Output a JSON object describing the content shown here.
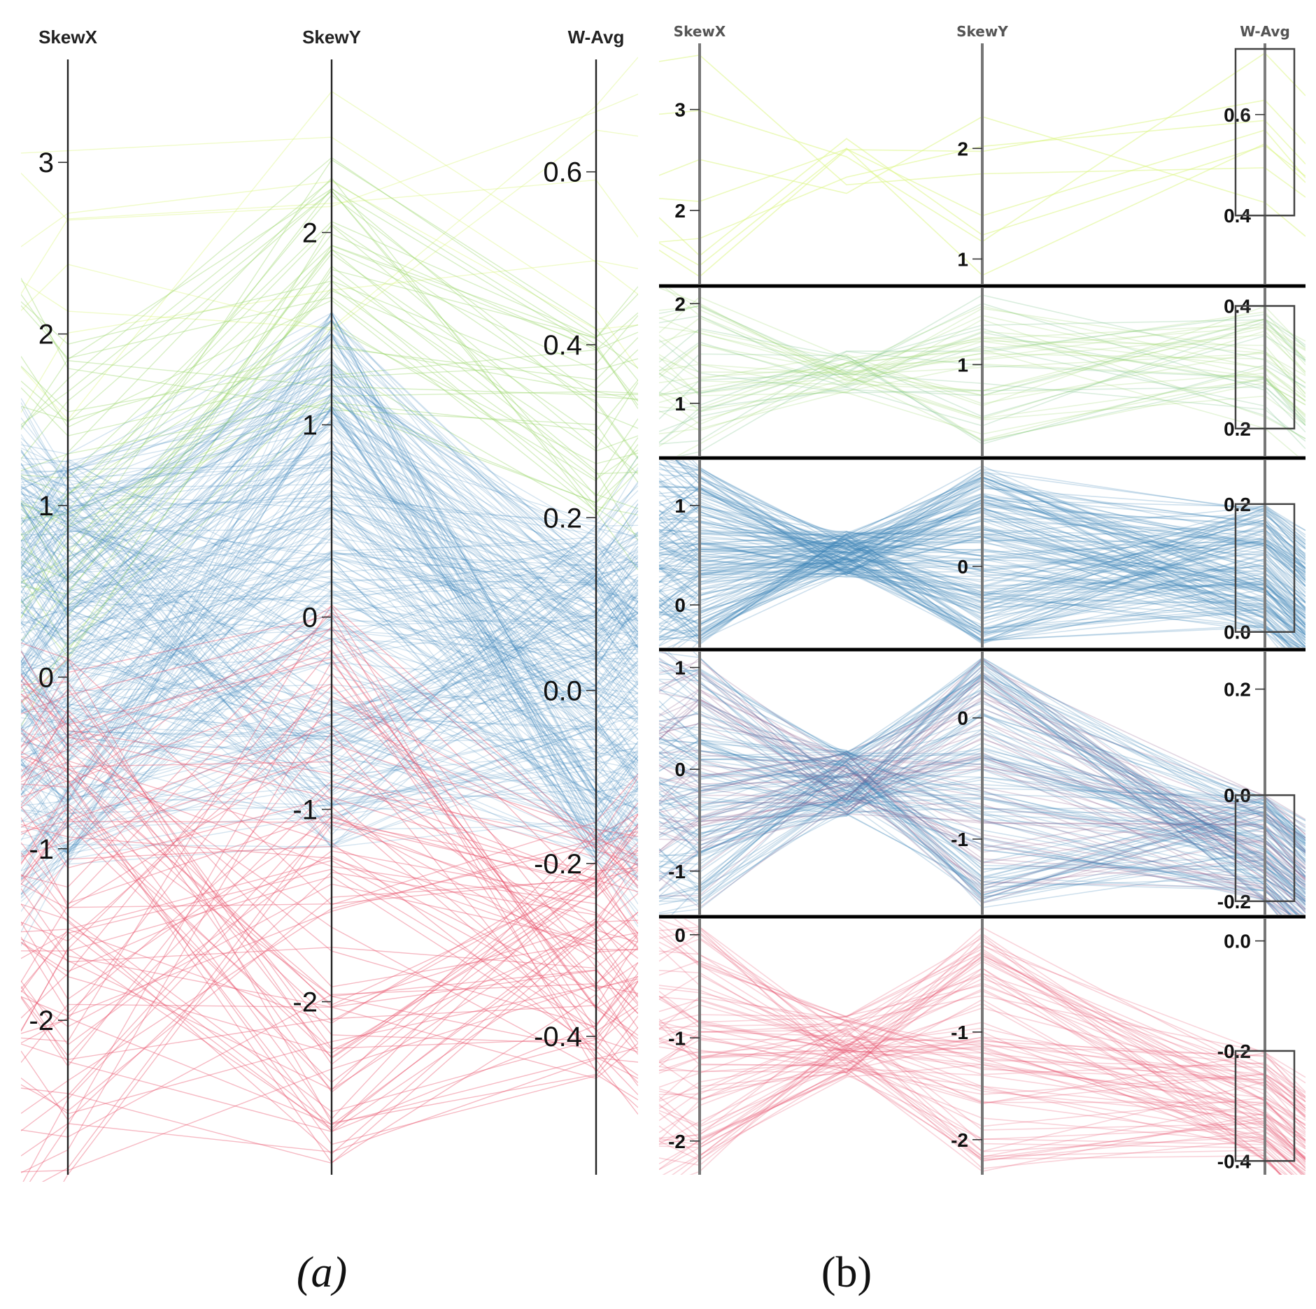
{
  "colors": {
    "green": "#9ad66b",
    "lightgreen": "#d9f57a",
    "midgreen": "#6aba7a",
    "blue": "#3c82b9",
    "red": "#e8506a",
    "purple": "#8a5a8a"
  },
  "captions": {
    "a": "(a)",
    "b": "(b)"
  },
  "chart_data": [
    {
      "type": "parallel-coordinates",
      "panel": "a",
      "axes": [
        {
          "name": "SkewX",
          "range": [
            -2.9,
            3.6
          ],
          "ticks": [
            3,
            2,
            1,
            0,
            -1,
            -2
          ],
          "tick_labels": [
            "3",
            "2",
            "1",
            "0",
            "-1",
            "-2"
          ]
        },
        {
          "name": "SkewY",
          "range": [
            -2.9,
            2.9
          ],
          "ticks": [
            2,
            1,
            0,
            -1,
            -2
          ],
          "tick_labels": [
            "2",
            "1",
            "0",
            "-1",
            "-2"
          ]
        },
        {
          "name": "W-Avg",
          "range": [
            -0.56,
            0.73
          ],
          "ticks": [
            0.6,
            0.4,
            0.2,
            0.0,
            -0.2,
            -0.4
          ],
          "tick_labels": [
            "0.6",
            "0.4",
            "0.2",
            "0.0",
            "-0.2",
            "-0.4"
          ]
        }
      ],
      "clusters": [
        {
          "name": "light-green",
          "count": 8,
          "skewx": [
            1.5,
            3.2
          ],
          "skewy": [
            0.8,
            2.9
          ],
          "wavg": [
            0.4,
            0.73
          ]
        },
        {
          "name": "green",
          "count": 40,
          "skewx": [
            0.1,
            2.0
          ],
          "skewy": [
            0.9,
            2.4
          ],
          "wavg": [
            0.2,
            0.42
          ]
        },
        {
          "name": "blue",
          "count": 300,
          "skewx": [
            -1.1,
            1.3
          ],
          "skewy": [
            -1.2,
            1.6
          ],
          "wavg": [
            -0.2,
            0.2
          ]
        },
        {
          "name": "red",
          "count": 90,
          "skewx": [
            -2.9,
            0.2
          ],
          "skewy": [
            -2.9,
            0.1
          ],
          "wavg": [
            -0.45,
            -0.15
          ]
        }
      ]
    },
    {
      "type": "parallel-coordinates",
      "panel": "b",
      "axes": [
        "SkewX",
        "SkewY",
        "W-Avg"
      ],
      "subplots": [
        {
          "cluster": "light-green",
          "skewx": {
            "range": [
              1.3,
              3.6
            ],
            "ticks": [
              3,
              2
            ],
            "tick_labels": [
              "3",
              "2"
            ]
          },
          "skewy": {
            "range": [
              0.8,
              2.9
            ],
            "ticks": [
              2,
              1
            ],
            "tick_labels": [
              "2",
              "1"
            ]
          },
          "wavg": {
            "range": [
              0.27,
              0.73
            ],
            "ticks": [
              0.6,
              0.4
            ],
            "tick_labels": [
              "0.6",
              "0.4"
            ]
          },
          "brush": [
            0.4,
            0.73
          ]
        },
        {
          "cluster": "green",
          "skewx": {
            "range": [
              0.5,
              2.1
            ],
            "ticks": [
              2,
              1
            ],
            "tick_labels": [
              "2",
              "1"
            ]
          },
          "skewy": {
            "range": [
              0.5,
              1.4
            ],
            "ticks": [
              1
            ],
            "tick_labels": [
              "1"
            ]
          },
          "wavg": {
            "range": [
              0.16,
              0.42
            ],
            "ticks": [
              0.4,
              0.2
            ],
            "tick_labels": [
              "0.4",
              "0.2"
            ]
          },
          "brush": [
            0.2,
            0.4
          ]
        },
        {
          "cluster": "blue-upper",
          "skewx": {
            "range": [
              -0.4,
              1.4
            ],
            "ticks": [
              1,
              0
            ],
            "tick_labels": [
              "1",
              "0"
            ]
          },
          "skewy": {
            "range": [
              -0.7,
              0.9
            ],
            "ticks": [
              0
            ],
            "tick_labels": [
              "0"
            ]
          },
          "wavg": {
            "range": [
              -0.02,
              0.26
            ],
            "ticks": [
              0.2,
              0.0
            ],
            "tick_labels": [
              "0.2",
              "0.0"
            ]
          },
          "brush": [
            0.0,
            0.2
          ]
        },
        {
          "cluster": "blue-lower",
          "skewx": {
            "range": [
              -1.4,
              1.1
            ],
            "ticks": [
              1,
              0,
              -1
            ],
            "tick_labels": [
              "1",
              "0",
              "-1"
            ]
          },
          "skewy": {
            "range": [
              -1.6,
              0.5
            ],
            "ticks": [
              0,
              -1
            ],
            "tick_labels": [
              "0",
              "-1"
            ]
          },
          "wavg": {
            "range": [
              -0.22,
              0.26
            ],
            "ticks": [
              0.2,
              0.0,
              -0.2
            ],
            "tick_labels": [
              "0.2",
              "0.0",
              "-0.2"
            ]
          },
          "brush": [
            -0.2,
            0.0
          ]
        },
        {
          "cluster": "red",
          "skewx": {
            "range": [
              -2.3,
              0.1
            ],
            "ticks": [
              0,
              -1,
              -2
            ],
            "tick_labels": [
              "0",
              "-1",
              "-2"
            ]
          },
          "skewy": {
            "range": [
              -2.3,
              0.0
            ],
            "ticks": [
              -1,
              -2
            ],
            "tick_labels": [
              "-1",
              "-2"
            ]
          },
          "wavg": {
            "range": [
              -0.42,
              0.03
            ],
            "ticks": [
              0.0,
              -0.2,
              -0.4
            ],
            "tick_labels": [
              "0.0",
              "-0.2",
              "-0.4"
            ]
          },
          "brush": [
            -0.4,
            -0.2
          ]
        }
      ]
    }
  ]
}
